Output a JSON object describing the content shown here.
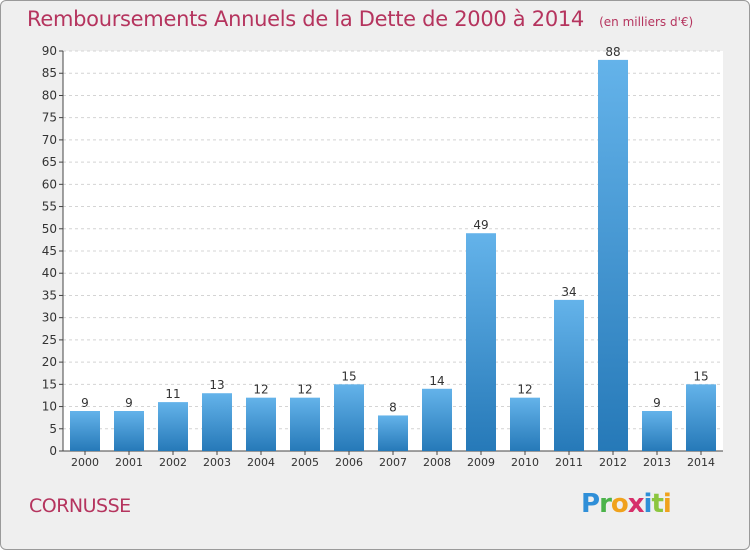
{
  "header": {
    "title": "Remboursements Annuels de la Dette de 2000 à 2014",
    "unit": "(en milliers d'€)"
  },
  "footer": {
    "commune": "CORNUSSE",
    "logo_text": "Proxiti"
  },
  "colors": {
    "accent": "#b5345e",
    "bar_light": "#64b3ea",
    "bar_dark": "#2679b8",
    "background": "#efefef"
  },
  "chart_data": {
    "type": "bar",
    "title": "Remboursements Annuels de la Dette de 2000 à 2014",
    "subtitle": "(en milliers d'€)",
    "xlabel": "",
    "ylabel": "",
    "categories": [
      "2000",
      "2001",
      "2002",
      "2003",
      "2004",
      "2005",
      "2006",
      "2007",
      "2008",
      "2009",
      "2010",
      "2011",
      "2012",
      "2013",
      "2014"
    ],
    "values": [
      9,
      9,
      11,
      13,
      12,
      12,
      15,
      8,
      14,
      49,
      12,
      34,
      88,
      9,
      15
    ],
    "ylim": [
      0,
      90
    ],
    "yticks": [
      0,
      5,
      10,
      15,
      20,
      25,
      30,
      35,
      40,
      45,
      50,
      55,
      60,
      65,
      70,
      75,
      80,
      85,
      90
    ],
    "grid": "horizontal",
    "data_labels": true,
    "legend": "none"
  }
}
